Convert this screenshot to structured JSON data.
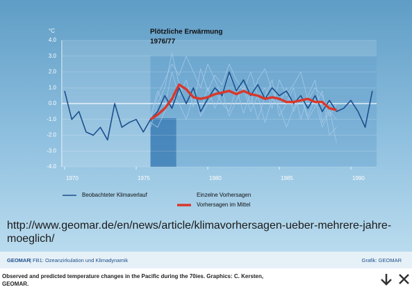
{
  "chart_data": {
    "type": "line",
    "annotation_lines": [
      "Plötzliche Erwärmung",
      "1976/77"
    ],
    "y_unit": "°C",
    "x": [
      1970,
      1970.5,
      1971,
      1971.5,
      1972,
      1972.5,
      1973,
      1973.5,
      1974,
      1974.5,
      1975,
      1975.5,
      1976,
      1976.5,
      1977,
      1977.5,
      1978,
      1978.5,
      1979,
      1979.5,
      1980,
      1980.5,
      1981,
      1981.5,
      1982,
      1982.5,
      1983,
      1983.5,
      1984,
      1984.5,
      1985,
      1985.5,
      1986,
      1986.5,
      1987,
      1987.5,
      1988,
      1988.5,
      1989,
      1989.5,
      1990,
      1990.5,
      1991,
      1991.5
    ],
    "series": [
      {
        "name": "Einzelne Vorhersagen",
        "color": "#a6cbe8",
        "width": 1,
        "values": [
          null,
          null,
          null,
          null,
          null,
          null,
          null,
          null,
          null,
          null,
          null,
          null,
          -1.0,
          0.5,
          1.5,
          2.5,
          1.8,
          3.0,
          2.0,
          1.0,
          2.5,
          1.5,
          0.5,
          1.8,
          0.8,
          1.2,
          0.0,
          1.5,
          2.2,
          0.8,
          0.0,
          1.0,
          -0.5,
          0.5,
          -0.8,
          0.3,
          -1.5,
          -0.5,
          -1.0,
          null,
          null,
          null,
          null,
          null
        ]
      },
      {
        "color": "#a6cbe8",
        "width": 1,
        "values": [
          null,
          null,
          null,
          null,
          null,
          null,
          null,
          null,
          null,
          null,
          null,
          null,
          -1.2,
          -1.5,
          -0.5,
          0.5,
          0.0,
          -1.0,
          0.5,
          -0.5,
          1.0,
          -0.3,
          0.8,
          -0.8,
          0.2,
          1.0,
          -0.5,
          0.5,
          -1.2,
          0.3,
          -0.2,
          -1.5,
          -0.3,
          0.5,
          -1.0,
          -0.2,
          0.8,
          -2.0,
          -1.5,
          null,
          null,
          null,
          null,
          null
        ]
      },
      {
        "color": "#a6cbe8",
        "width": 1,
        "values": [
          null,
          null,
          null,
          null,
          null,
          null,
          null,
          null,
          null,
          null,
          null,
          null,
          -0.8,
          0.8,
          -0.2,
          2.0,
          0.5,
          1.5,
          -0.2,
          2.2,
          0.8,
          1.8,
          1.2,
          2.5,
          1.5,
          0.8,
          2.0,
          0.5,
          1.0,
          -0.3,
          1.5,
          0.5,
          1.2,
          2.0,
          0.2,
          1.0,
          0.5,
          -0.8,
          0.0,
          null,
          null,
          null,
          null,
          null
        ]
      },
      {
        "color": "#a6cbe8",
        "width": 1,
        "values": [
          null,
          null,
          null,
          null,
          null,
          null,
          null,
          null,
          null,
          null,
          null,
          null,
          -1.5,
          0.0,
          1.0,
          3.2,
          1.2,
          0.0,
          1.0,
          -0.8,
          0.0,
          0.8,
          0.0,
          -0.5,
          1.0,
          -0.6,
          0.6,
          -1.0,
          0.4,
          1.5,
          -0.8,
          0.0,
          1.0,
          -1.0,
          0.5,
          1.5,
          -1.2,
          -0.3,
          -2.5,
          null,
          null,
          null,
          null,
          null
        ]
      },
      {
        "name": "Beobachteter Klimaverlauf",
        "color": "#1b4f8c",
        "width": 1.6,
        "values": [
          0.8,
          -1.0,
          -0.5,
          -1.8,
          -2.0,
          -1.5,
          -2.3,
          0.0,
          -1.5,
          -1.2,
          -1.0,
          -1.8,
          -1.0,
          -0.5,
          0.5,
          -0.3,
          1.0,
          0.0,
          1.0,
          -0.5,
          0.3,
          1.0,
          0.5,
          2.0,
          0.8,
          1.5,
          0.5,
          1.2,
          0.3,
          1.0,
          0.5,
          0.8,
          0.0,
          0.5,
          -0.3,
          0.5,
          -0.5,
          0.2,
          -0.5,
          -0.3,
          0.2,
          -0.5,
          -1.5,
          0.8
        ]
      },
      {
        "name": "Vorhersagen im Mittel",
        "color": "#d8382b",
        "width": 3.5,
        "values": [
          null,
          null,
          null,
          null,
          null,
          null,
          null,
          null,
          null,
          null,
          null,
          null,
          -1.0,
          -0.7,
          -0.3,
          0.3,
          1.2,
          0.9,
          0.4,
          0.3,
          0.4,
          0.6,
          0.7,
          0.8,
          0.6,
          0.8,
          0.6,
          0.5,
          0.3,
          0.4,
          0.3,
          0.1,
          0.1,
          0.2,
          0.3,
          0.1,
          0.1,
          -0.3,
          -0.4,
          null,
          null,
          null,
          null,
          null
        ]
      }
    ],
    "legend_order": [
      4,
      0,
      5
    ],
    "shaded_span": [
      1976,
      1991.8
    ],
    "highlight_span": [
      1976,
      1977.8
    ],
    "xlim": [
      1969.8,
      1991.8
    ],
    "xticks": [
      1970,
      1975,
      1980,
      1985,
      1990
    ],
    "ylim": [
      -4,
      4
    ],
    "yticks": [
      {
        "value": -4,
        "label": "-4.0"
      },
      {
        "value": -3,
        "label": "-3.0"
      },
      {
        "value": -2,
        "label": "-2.0"
      },
      {
        "value": -1,
        "label": "-1.0"
      },
      {
        "value": 0,
        "label": "0.0"
      },
      {
        "value": 1,
        "label": "1.0"
      },
      {
        "value": 2,
        "label": "2.0"
      },
      {
        "value": 3,
        "label": "3.0"
      },
      {
        "value": 4,
        "label": "4.0"
      }
    ],
    "grid": true
  },
  "overlay_url": {
    "lines": [
      "http://www.geomar.de/en/news/article/klimavorhersagen-ueber-mehrere-jahre-",
      "moeglich/"
    ]
  },
  "footer": {
    "brand": "GEOMAR",
    "department": "| FB1: Ozeanzirkulation und Klimadynamik",
    "credit": "Grafik: GEOMAR"
  },
  "caption": {
    "lines": [
      "Observed and predicted temperature changes in the Pacific during the 70ies. Graphics: C. Kersten,",
      "GEOMAR."
    ]
  }
}
